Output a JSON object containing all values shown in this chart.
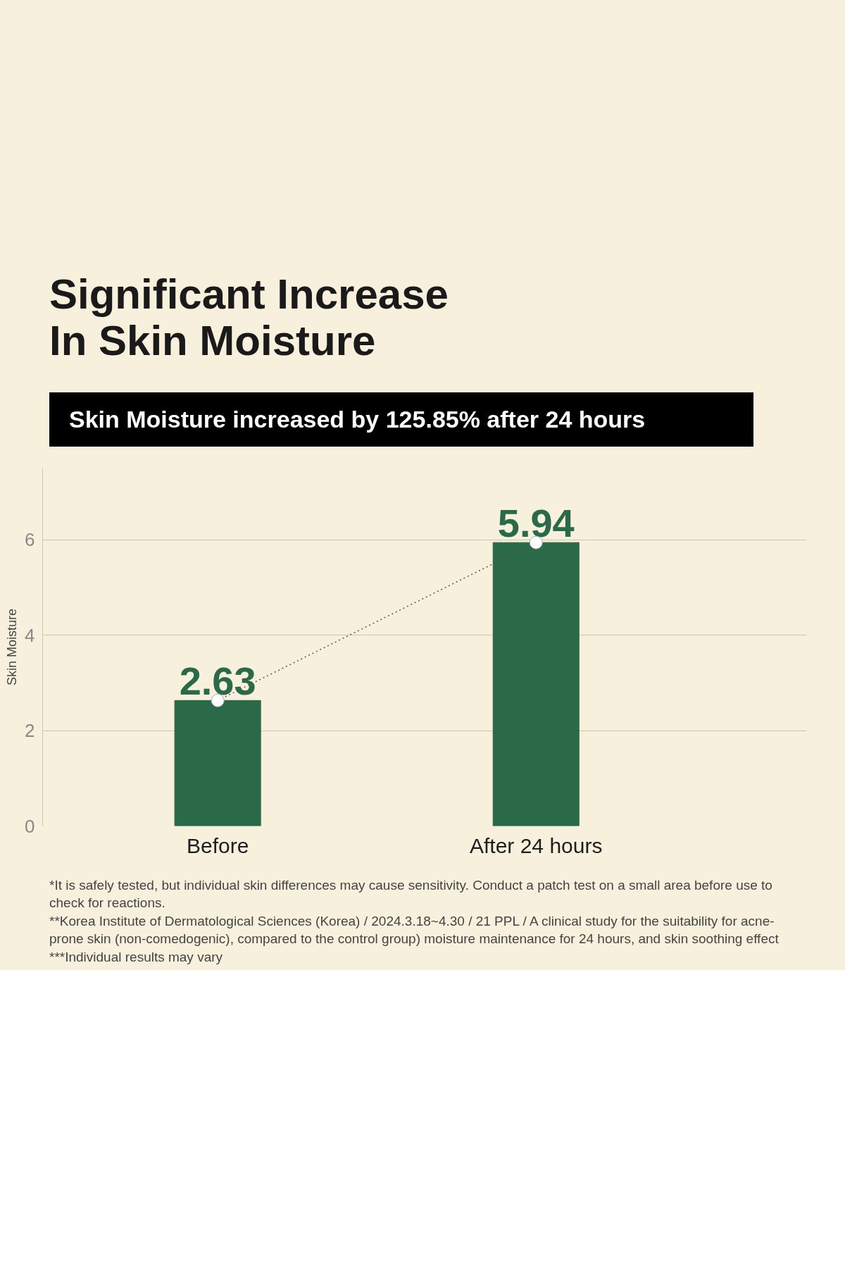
{
  "chart_data": {
    "type": "bar",
    "title": "Significant Increase\nIn Skin Moisture",
    "subtitle": "Skin Moisture increased by 125.85% after 24 hours",
    "ylabel": "Skin Moisture",
    "categories": [
      "Before",
      "After 24 hours"
    ],
    "series": [
      {
        "color": "#2b6a48",
        "values": [
          2.63,
          5.94
        ],
        "value_labels": [
          "2.63",
          "5.94"
        ]
      },
      {
        "type": "line",
        "color": "#555555",
        "values": [
          2.63,
          5.94
        ],
        "marker": "circle",
        "line_style": "dotted"
      }
    ],
    "ylim": [
      0,
      7.5
    ],
    "yticks": [
      0,
      2,
      4,
      6
    ],
    "grid": "y",
    "annotations": [
      "*It is safely tested, but individual skin differences may cause sensitivity. Conduct a patch test on a small area before use to check for reactions.",
      "**Korea Institute of Dermatological Sciences (Korea) / 2024.3.18~4.30 / 21 PPL / A clinical study for the suitability for acne-prone skin (non-comedogenic), compared to the control group) moisture maintenance for 24 hours, and skin soothing effect",
      "***Individual results may vary"
    ]
  }
}
